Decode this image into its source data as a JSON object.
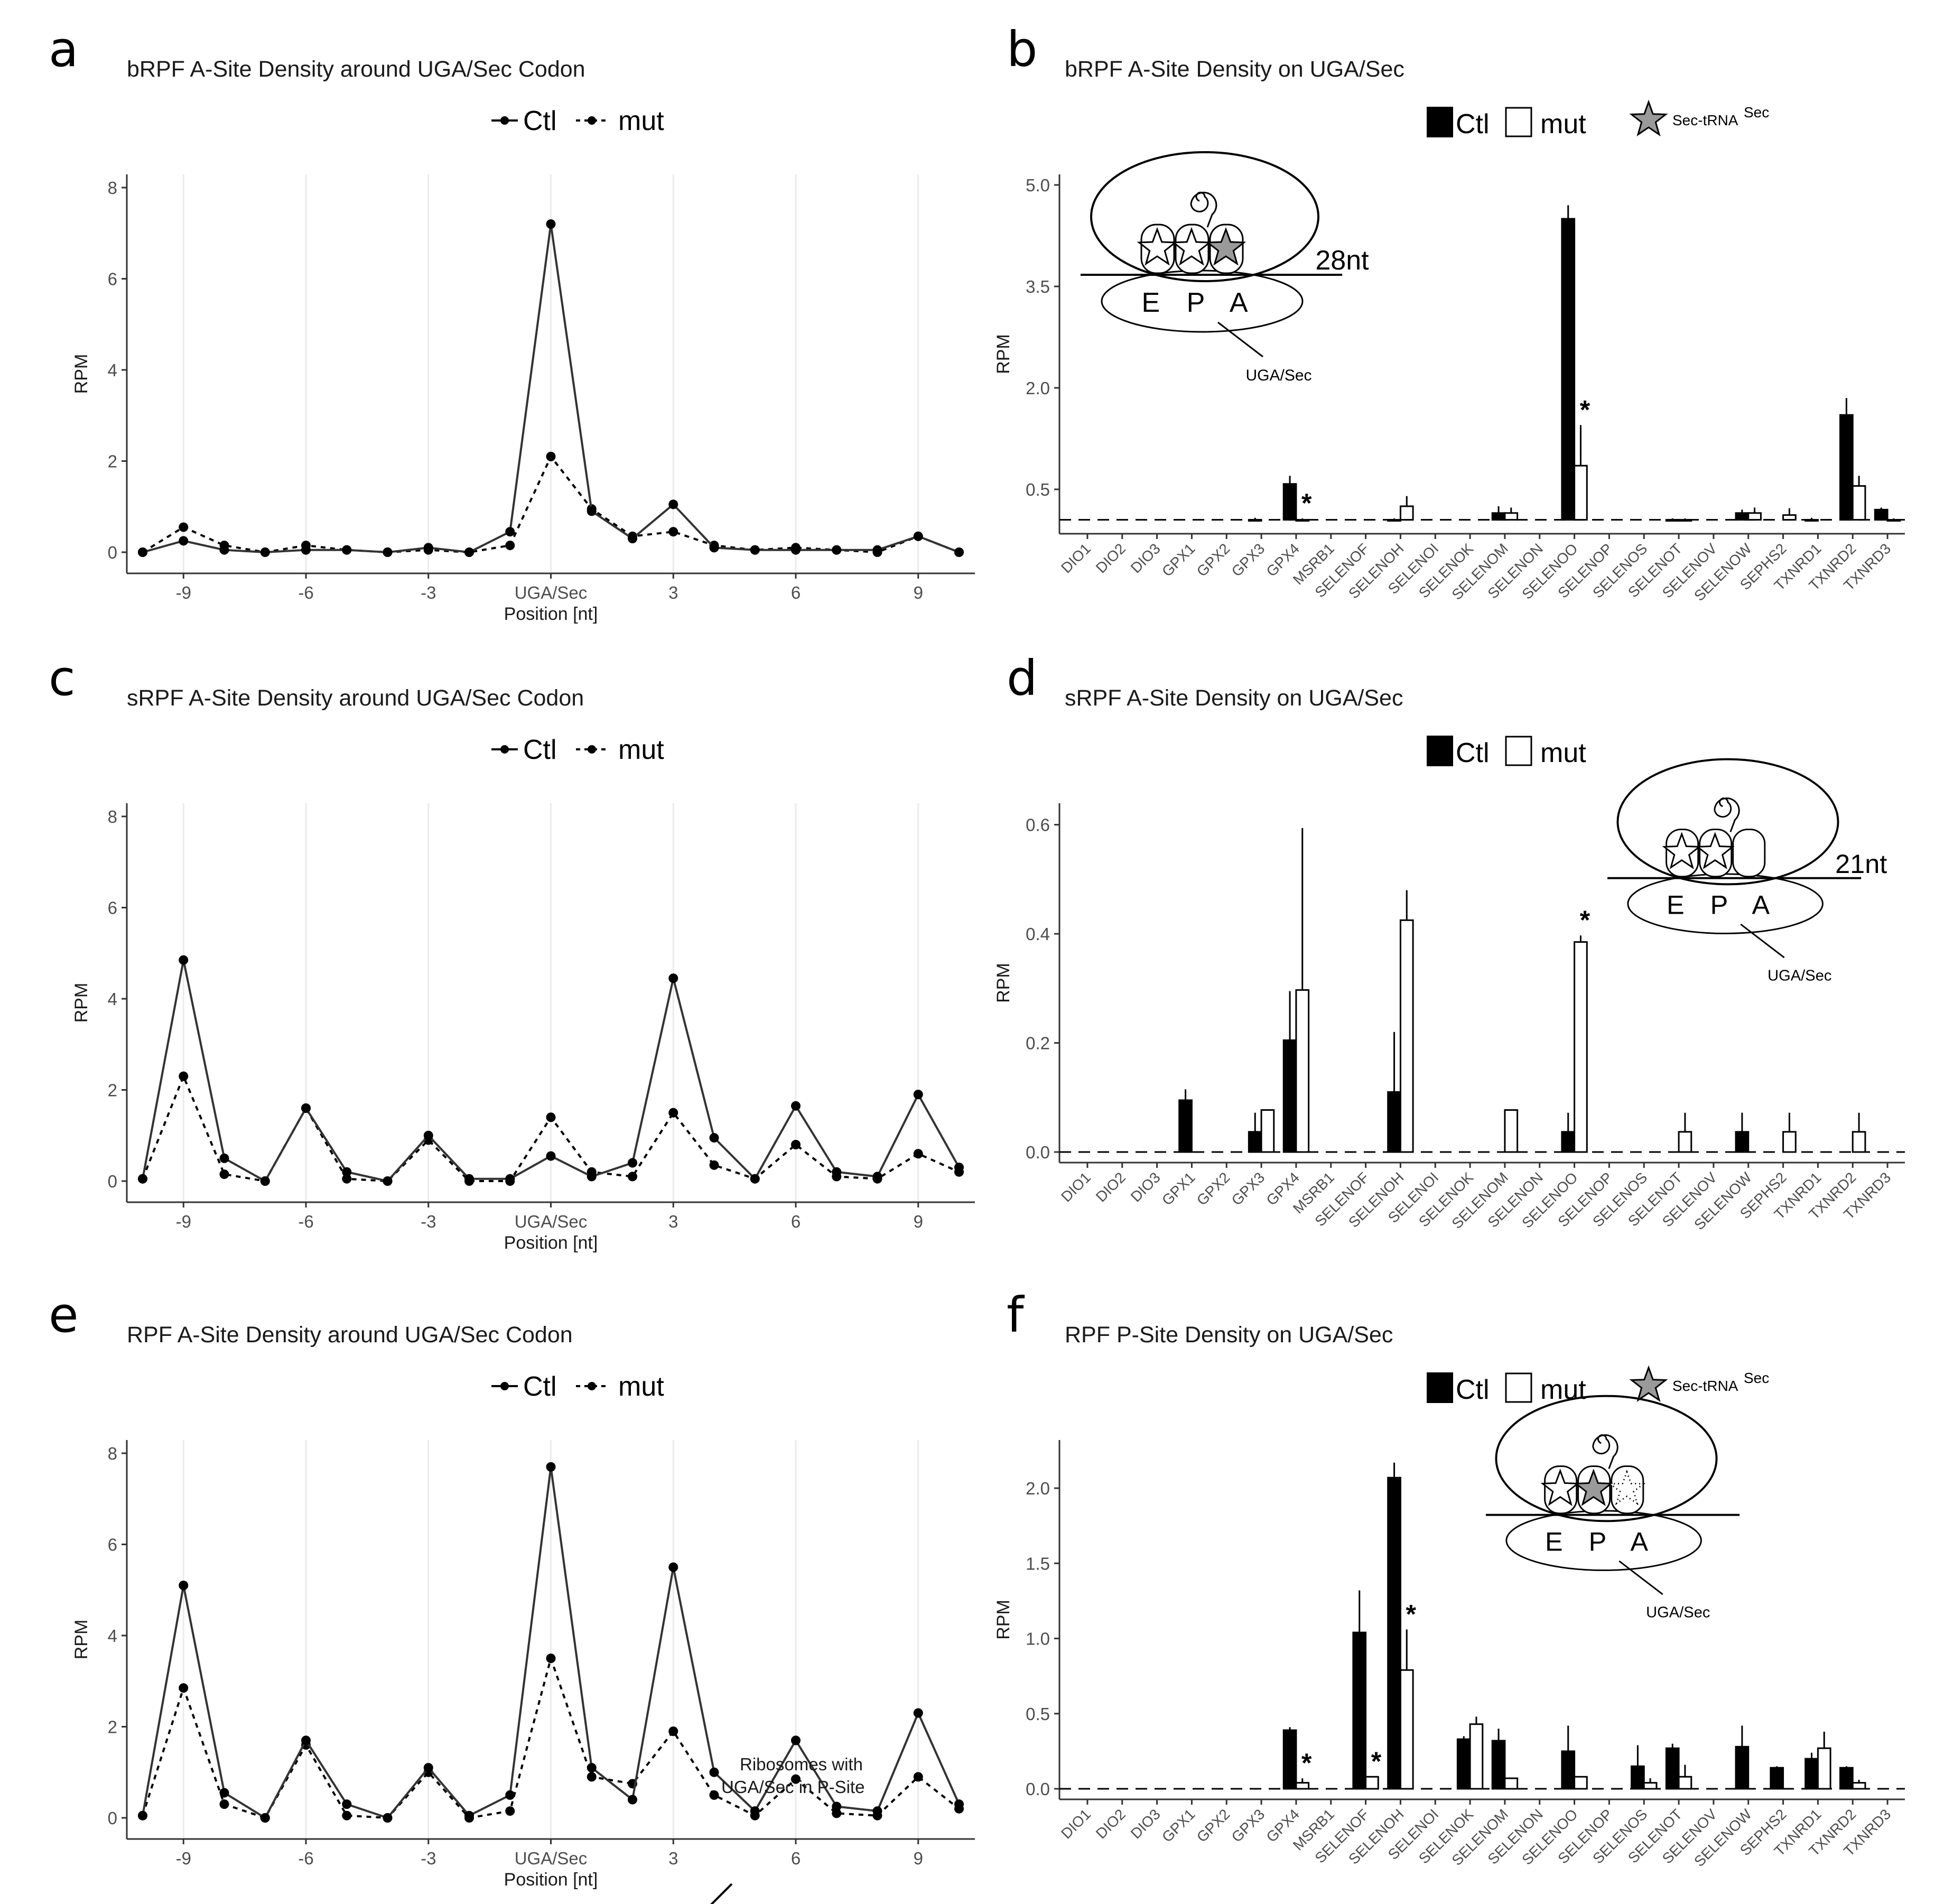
{
  "chart_data": [
    {
      "id": "a",
      "type": "line",
      "title": "bRPF A-Site Density around UGA/Sec Codon",
      "xlabel": "Position [nt]",
      "ylabel": "RPM",
      "x": [
        -10,
        -9,
        -8,
        -7,
        -6,
        -5,
        -4,
        -3,
        -2,
        -1,
        0,
        1,
        2,
        3,
        4,
        5,
        6,
        7,
        8,
        9,
        10
      ],
      "xlim": [
        -10,
        10
      ],
      "ylim": [
        0,
        8
      ],
      "xticks": [
        -9,
        -6,
        -3,
        0,
        3,
        6,
        9
      ],
      "xtick_labels": [
        "-9",
        "-6",
        "-3",
        "UGA/Sec",
        "3",
        "6",
        "9"
      ],
      "yticks": [
        0,
        2,
        4,
        6,
        8
      ],
      "ytick_labels": [
        "0",
        "2",
        "4",
        "6",
        "8"
      ],
      "legend": [
        "Ctl",
        "mut"
      ],
      "series": [
        {
          "name": "Ctl",
          "style": "solid",
          "values": [
            0,
            0.25,
            0.05,
            0,
            0.05,
            0.05,
            0,
            0.1,
            0,
            0.45,
            7.2,
            0.9,
            0.3,
            1.05,
            0.1,
            0.05,
            0.05,
            0.05,
            0.05,
            0.35,
            0
          ]
        },
        {
          "name": "mut",
          "style": "dashed",
          "values": [
            0,
            0.55,
            0.15,
            0,
            0.15,
            0.05,
            0,
            0.05,
            0,
            0.15,
            2.1,
            0.95,
            0.35,
            0.45,
            0.15,
            0.05,
            0.1,
            0.05,
            0,
            0.35,
            0
          ]
        }
      ]
    },
    {
      "id": "b",
      "type": "bar",
      "title": "bRPF A-Site Density on UGA/Sec",
      "ylabel": "RPM",
      "ylim": [
        0,
        5.0
      ],
      "yticks": [
        0.5,
        2.0,
        3.5,
        5.0
      ],
      "ytick_labels": [
        "0.5",
        "2.0",
        "3.5",
        "5.0"
      ],
      "baseline": 0.05,
      "legend": [
        "Ctl",
        "mut",
        "Sec-tRNA",
        "Sec"
      ],
      "inset": {
        "nt": "28nt",
        "sites": "E P A",
        "codon": "UGA/Sec",
        "p_star": "white",
        "a_star": "grey"
      },
      "categories": [
        "DIO1",
        "DIO2",
        "DIO3",
        "GPX1",
        "GPX2",
        "GPX3",
        "GPX4",
        "MSRB1",
        "SELENOF",
        "SELENOH",
        "SELENOI",
        "SELENOK",
        "SELENOM",
        "SELENON",
        "SELENOO",
        "SELENOP",
        "SELENOS",
        "SELENOT",
        "SELENOV",
        "SELENOW",
        "SEPHS2",
        "TXNRD1",
        "TXNRD2",
        "TXNRD3"
      ],
      "series": [
        {
          "name": "Ctl",
          "values": [
            0,
            0,
            0,
            0,
            0,
            0.05,
            0.58,
            0,
            0,
            0.05,
            0,
            0,
            0.15,
            0,
            4.5,
            0,
            0,
            0.05,
            0,
            0.15,
            0,
            0.05,
            1.6,
            0.2
          ],
          "errors": [
            0,
            0,
            0,
            0,
            0,
            0.03,
            0.12,
            0,
            0,
            0.02,
            0,
            0,
            0.1,
            0,
            0.2,
            0,
            0,
            0.02,
            0,
            0.05,
            0,
            0.03,
            0.25,
            0.03
          ]
        },
        {
          "name": "mut",
          "values": [
            0,
            0,
            0,
            0,
            0,
            0,
            0.05,
            0,
            0,
            0.25,
            0,
            0,
            0.15,
            0,
            0.85,
            0,
            0,
            0.05,
            0,
            0.15,
            0.12,
            0,
            0.55,
            0.05
          ],
          "errors": [
            0,
            0,
            0,
            0,
            0,
            0,
            0.02,
            0,
            0,
            0.15,
            0,
            0,
            0.08,
            0,
            0.6,
            0,
            0,
            0.02,
            0,
            0.08,
            0.1,
            0,
            0.15,
            0.02
          ]
        }
      ],
      "significance": [
        "GPX4",
        "SELENOO"
      ]
    },
    {
      "id": "c",
      "type": "line",
      "title": "sRPF A-Site Density around UGA/Sec Codon",
      "xlabel": "Position [nt]",
      "ylabel": "RPM",
      "x": [
        -10,
        -9,
        -8,
        -7,
        -6,
        -5,
        -4,
        -3,
        -2,
        -1,
        0,
        1,
        2,
        3,
        4,
        5,
        6,
        7,
        8,
        9,
        10
      ],
      "xlim": [
        -10,
        10
      ],
      "ylim": [
        0,
        8
      ],
      "xticks": [
        -9,
        -6,
        -3,
        0,
        3,
        6,
        9
      ],
      "xtick_labels": [
        "-9",
        "-6",
        "-3",
        "UGA/Sec",
        "3",
        "6",
        "9"
      ],
      "yticks": [
        0,
        2,
        4,
        6,
        8
      ],
      "ytick_labels": [
        "0",
        "2",
        "4",
        "6",
        "8"
      ],
      "legend": [
        "Ctl",
        "mut"
      ],
      "series": [
        {
          "name": "Ctl",
          "style": "solid",
          "values": [
            0.05,
            4.85,
            0.5,
            0,
            1.6,
            0.2,
            0,
            1.0,
            0.05,
            0.05,
            0.55,
            0.1,
            0.4,
            4.45,
            0.95,
            0.05,
            1.65,
            0.2,
            0.1,
            1.9,
            0.3
          ]
        },
        {
          "name": "mut",
          "style": "dashed",
          "values": [
            0.05,
            2.3,
            0.15,
            0,
            1.6,
            0.05,
            0,
            0.9,
            0,
            0,
            1.4,
            0.2,
            0.1,
            1.5,
            0.35,
            0.05,
            0.8,
            0.1,
            0.05,
            0.6,
            0.2
          ]
        }
      ]
    },
    {
      "id": "d",
      "type": "bar",
      "title": "sRPF A-Site Density on UGA/Sec",
      "ylabel": "RPM",
      "ylim": [
        0,
        0.62
      ],
      "yticks": [
        0.0,
        0.2,
        0.4,
        0.6
      ],
      "ytick_labels": [
        "0.0",
        "0.2",
        "0.4",
        "0.6"
      ],
      "baseline": 0,
      "legend": [
        "Ctl",
        "mut"
      ],
      "inset": {
        "nt": "21nt",
        "sites": "E P A",
        "codon": "UGA/Sec",
        "p_star": "white",
        "a_star": "none"
      },
      "categories": [
        "DIO1",
        "DIO2",
        "DIO3",
        "GPX1",
        "GPX2",
        "GPX3",
        "GPX4",
        "MSRB1",
        "SELENOF",
        "SELENOH",
        "SELENOI",
        "SELENOK",
        "SELENOM",
        "SELENON",
        "SELENOO",
        "SELENOP",
        "SELENOS",
        "SELENOT",
        "SELENOV",
        "SELENOW",
        "SEPHS2",
        "TXNRD1",
        "TXNRD2",
        "TXNRD3"
      ],
      "series": [
        {
          "name": "Ctl",
          "values": [
            0,
            0,
            0,
            0.095,
            0,
            0.037,
            0.205,
            0,
            0,
            0.11,
            0,
            0,
            0,
            0,
            0.037,
            0,
            0,
            0,
            0,
            0.037,
            0,
            0,
            0,
            0
          ],
          "errors": [
            0,
            0,
            0,
            0.02,
            0,
            0.035,
            0.09,
            0,
            0,
            0.11,
            0,
            0,
            0,
            0,
            0.035,
            0,
            0,
            0,
            0,
            0.035,
            0,
            0,
            0,
            0
          ]
        },
        {
          "name": "mut",
          "values": [
            0,
            0,
            0,
            0,
            0,
            0.077,
            0.297,
            0,
            0,
            0.425,
            0,
            0,
            0.077,
            0,
            0.385,
            0,
            0,
            0.037,
            0,
            0,
            0.037,
            0,
            0.037,
            0
          ],
          "errors": [
            0,
            0,
            0,
            0,
            0,
            0,
            0.297,
            0,
            0,
            0.055,
            0,
            0,
            0,
            0,
            0.012,
            0,
            0,
            0.035,
            0,
            0,
            0.035,
            0,
            0.035,
            0
          ]
        }
      ],
      "significance": [
        "SELENOO"
      ]
    },
    {
      "id": "e",
      "type": "line",
      "title": "RPF A-Site Density around UGA/Sec Codon",
      "xlabel": "Position [nt]",
      "ylabel": "RPM",
      "x": [
        -10,
        -9,
        -8,
        -7,
        -6,
        -5,
        -4,
        -3,
        -2,
        -1,
        0,
        1,
        2,
        3,
        4,
        5,
        6,
        7,
        8,
        9,
        10
      ],
      "xlim": [
        -10,
        10
      ],
      "ylim": [
        0,
        8
      ],
      "xticks": [
        -9,
        -6,
        -3,
        0,
        3,
        6,
        9
      ],
      "xtick_labels": [
        "-9",
        "-6",
        "-3",
        "UGA/Sec",
        "3",
        "6",
        "9"
      ],
      "yticks": [
        0,
        2,
        4,
        6,
        8
      ],
      "ytick_labels": [
        "0",
        "2",
        "4",
        "6",
        "8"
      ],
      "legend": [
        "Ctl",
        "mut"
      ],
      "annotation": "Ribosomes with UGA/Sec in P-Site",
      "series": [
        {
          "name": "Ctl",
          "style": "solid",
          "values": [
            0.05,
            5.1,
            0.55,
            0,
            1.7,
            0.3,
            0,
            1.1,
            0.05,
            0.5,
            7.7,
            1.1,
            0.4,
            5.5,
            1.0,
            0.15,
            1.7,
            0.25,
            0.15,
            2.3,
            0.3
          ]
        },
        {
          "name": "mut",
          "style": "dashed",
          "values": [
            0.05,
            2.85,
            0.3,
            0,
            1.6,
            0.05,
            0,
            1.0,
            0,
            0.15,
            3.5,
            0.9,
            0.75,
            1.9,
            0.5,
            0.05,
            0.85,
            0.1,
            0.05,
            0.9,
            0.2
          ]
        }
      ]
    },
    {
      "id": "f",
      "type": "bar",
      "title": "RPF P-Site Density on UGA/Sec",
      "ylabel": "RPM",
      "ylim": [
        0,
        2.25
      ],
      "yticks": [
        0.0,
        0.5,
        1.0,
        1.5,
        2.0
      ],
      "ytick_labels": [
        "0.0",
        "0.5",
        "1.0",
        "1.5",
        "2.0"
      ],
      "baseline": 0,
      "legend": [
        "Ctl",
        "mut",
        "Sec-tRNA",
        "Sec"
      ],
      "inset": {
        "nt": "",
        "sites": "E P A",
        "codon": "UGA/Sec",
        "p_star": "grey",
        "a_star": "dotted"
      },
      "categories": [
        "DIO1",
        "DIO2",
        "DIO3",
        "GPX1",
        "GPX2",
        "GPX3",
        "GPX4",
        "MSRB1",
        "SELENOF",
        "SELENOH",
        "SELENOI",
        "SELENOK",
        "SELENOM",
        "SELENON",
        "SELENOO",
        "SELENOP",
        "SELENOS",
        "SELENOT",
        "SELENOV",
        "SELENOW",
        "SEPHS2",
        "TXNRD1",
        "TXNRD2",
        "TXNRD3"
      ],
      "series": [
        {
          "name": "Ctl",
          "values": [
            0,
            0,
            0,
            0,
            0,
            0,
            0.39,
            0,
            1.04,
            2.07,
            0,
            0.33,
            0.32,
            0,
            0.25,
            0,
            0.15,
            0.27,
            0,
            0.28,
            0.14,
            0.2,
            0.14,
            0
          ],
          "errors": [
            0,
            0,
            0,
            0,
            0,
            0,
            0.02,
            0,
            0.28,
            0.1,
            0,
            0.02,
            0.08,
            0,
            0.17,
            0,
            0.14,
            0.03,
            0,
            0.14,
            0.01,
            0.04,
            0.01,
            0
          ]
        },
        {
          "name": "mut",
          "values": [
            0,
            0,
            0,
            0,
            0,
            0,
            0.04,
            0,
            0.08,
            0.79,
            0,
            0.43,
            0.07,
            0,
            0.08,
            0,
            0.04,
            0.08,
            0,
            0,
            0,
            0.27,
            0.04,
            0
          ],
          "errors": [
            0,
            0,
            0,
            0,
            0,
            0,
            0.03,
            0,
            0,
            0.27,
            0,
            0.05,
            0,
            0,
            0,
            0,
            0.03,
            0.08,
            0,
            0,
            0,
            0.11,
            0.02,
            0
          ]
        }
      ],
      "significance": [
        "GPX4",
        "SELENOF",
        "SELENOH"
      ]
    }
  ],
  "figure": {
    "panel_letters": [
      "a",
      "b",
      "c",
      "d",
      "e",
      "f"
    ],
    "colors": {
      "ctl": "#000000",
      "mut": "#ffffff",
      "line": "#333333",
      "grid": "#ebebeb",
      "axis": "#333333",
      "sec_star": "#9a9a9a"
    },
    "star_glyph": "*"
  }
}
